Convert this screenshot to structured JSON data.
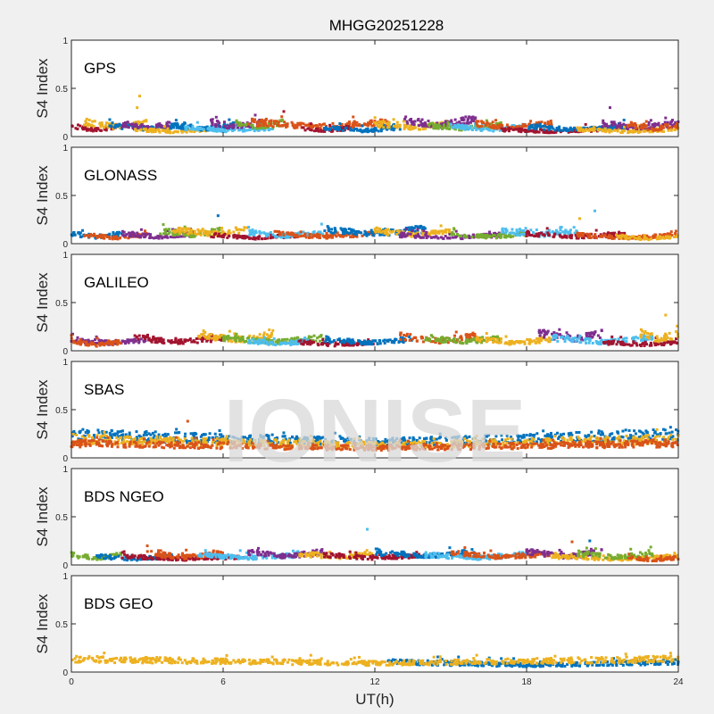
{
  "chart_data": {
    "type": "scatter",
    "title": "MHGG20251228",
    "xlabel": "UT(h)",
    "ylabel": "S4 Index",
    "xlim": [
      0,
      24
    ],
    "ylim": [
      0,
      1
    ],
    "xticks": [
      "0",
      "6",
      "12",
      "18",
      "24"
    ],
    "yticks": [
      "0",
      "0.5",
      "1"
    ],
    "watermark": "IONISE",
    "colors": [
      "#0072BD",
      "#D95319",
      "#EDB120",
      "#7E2F8E",
      "#77AC30",
      "#4DBEEE",
      "#A2142F"
    ],
    "panels": [
      {
        "label": "GPS",
        "tracks": [
          {
            "c": 6,
            "x": [
              0,
              2
            ],
            "y": 0.07
          },
          {
            "c": 2,
            "x": [
              0.5,
              3
            ],
            "y": 0.1
          },
          {
            "c": 0,
            "x": [
              1.5,
              4.5
            ],
            "y": 0.08
          },
          {
            "c": 3,
            "x": [
              2,
              4
            ],
            "y": 0.09
          },
          {
            "c": 2,
            "x": [
              2.5,
              5.5
            ],
            "y": 0.05
          },
          {
            "c": 0,
            "x": [
              4,
              6.5
            ],
            "y": 0.08
          },
          {
            "c": 5,
            "x": [
              4.5,
              8
            ],
            "y": 0.06
          },
          {
            "c": 3,
            "x": [
              5.5,
              7.5
            ],
            "y": 0.1
          },
          {
            "c": 4,
            "x": [
              6.5,
              8.5
            ],
            "y": 0.1
          },
          {
            "c": 1,
            "x": [
              7,
              12.5
            ],
            "y": 0.1
          },
          {
            "c": 6,
            "x": [
              9,
              11
            ],
            "y": 0.06
          },
          {
            "c": 0,
            "x": [
              10,
              13
            ],
            "y": 0.06
          },
          {
            "c": 2,
            "x": [
              12,
              15
            ],
            "y": 0.09
          },
          {
            "c": 3,
            "x": [
              13,
              16
            ],
            "y": 0.12
          },
          {
            "c": 4,
            "x": [
              14,
              17
            ],
            "y": 0.08
          },
          {
            "c": 5,
            "x": [
              15,
              18
            ],
            "y": 0.07
          },
          {
            "c": 1,
            "x": [
              16,
              19
            ],
            "y": 0.09
          },
          {
            "c": 6,
            "x": [
              17,
              21
            ],
            "y": 0.05
          },
          {
            "c": 0,
            "x": [
              18,
              22
            ],
            "y": 0.07
          },
          {
            "c": 2,
            "x": [
              20,
              24
            ],
            "y": 0.05
          },
          {
            "c": 3,
            "x": [
              21,
              24
            ],
            "y": 0.09
          },
          {
            "c": 1,
            "x": [
              22,
              24
            ],
            "y": 0.08
          }
        ],
        "spikes": [
          [
            2.7,
            0.42,
            2
          ],
          [
            2.6,
            0.3,
            2
          ],
          [
            8.4,
            0.26,
            6
          ],
          [
            21.3,
            0.3,
            3
          ]
        ]
      },
      {
        "label": "GLONASS",
        "tracks": [
          {
            "c": 0,
            "x": [
              0,
              2
            ],
            "y": 0.07
          },
          {
            "c": 1,
            "x": [
              0.5,
              3
            ],
            "y": 0.06
          },
          {
            "c": 3,
            "x": [
              2,
              5
            ],
            "y": 0.07
          },
          {
            "c": 4,
            "x": [
              3.5,
              6
            ],
            "y": 0.09
          },
          {
            "c": 2,
            "x": [
              4,
              7
            ],
            "y": 0.1
          },
          {
            "c": 6,
            "x": [
              5.5,
              9
            ],
            "y": 0.06
          },
          {
            "c": 5,
            "x": [
              7,
              10
            ],
            "y": 0.08
          },
          {
            "c": 1,
            "x": [
              8,
              12
            ],
            "y": 0.07
          },
          {
            "c": 0,
            "x": [
              10,
              14
            ],
            "y": 0.1
          },
          {
            "c": 2,
            "x": [
              12,
              15
            ],
            "y": 0.09
          },
          {
            "c": 3,
            "x": [
              13,
              17
            ],
            "y": 0.06
          },
          {
            "c": 4,
            "x": [
              15,
              18
            ],
            "y": 0.07
          },
          {
            "c": 5,
            "x": [
              17,
              20
            ],
            "y": 0.09
          },
          {
            "c": 6,
            "x": [
              18,
              22
            ],
            "y": 0.07
          },
          {
            "c": 1,
            "x": [
              20,
              24
            ],
            "y": 0.06
          },
          {
            "c": 2,
            "x": [
              21.5,
              24
            ],
            "y": 0.05
          }
        ],
        "spikes": [
          [
            5.8,
            0.29,
            0
          ],
          [
            20.7,
            0.34,
            5
          ],
          [
            20.1,
            0.26,
            2
          ]
        ]
      },
      {
        "label": "GALILEO",
        "tracks": [
          {
            "c": 3,
            "x": [
              0,
              3
            ],
            "y": 0.08
          },
          {
            "c": 1,
            "x": [
              0,
              2
            ],
            "y": 0.06
          },
          {
            "c": 6,
            "x": [
              2.5,
              6
            ],
            "y": 0.09
          },
          {
            "c": 2,
            "x": [
              5,
              8
            ],
            "y": 0.11
          },
          {
            "c": 4,
            "x": [
              6,
              10
            ],
            "y": 0.09
          },
          {
            "c": 5,
            "x": [
              7,
              9.5
            ],
            "y": 0.07
          },
          {
            "c": 6,
            "x": [
              9,
              12
            ],
            "y": 0.06
          },
          {
            "c": 0,
            "x": [
              10,
              13.5
            ],
            "y": 0.08
          },
          {
            "c": 1,
            "x": [
              13,
              16
            ],
            "y": 0.1
          },
          {
            "c": 4,
            "x": [
              14,
              17
            ],
            "y": 0.09
          },
          {
            "c": 2,
            "x": [
              16,
              19
            ],
            "y": 0.08
          },
          {
            "c": 3,
            "x": [
              18.5,
              21
            ],
            "y": 0.12
          },
          {
            "c": 5,
            "x": [
              19,
              23
            ],
            "y": 0.09
          },
          {
            "c": 6,
            "x": [
              21,
              24
            ],
            "y": 0.06
          },
          {
            "c": 2,
            "x": [
              22.5,
              24
            ],
            "y": 0.12
          }
        ],
        "spikes": [
          [
            23.5,
            0.37,
            2
          ],
          [
            19.3,
            0.22,
            3
          ]
        ]
      },
      {
        "label": "SBAS",
        "tracks": [
          {
            "c": 0,
            "x": [
              0,
              24
            ],
            "y": 0.16
          },
          {
            "c": 2,
            "x": [
              0,
              24
            ],
            "y": 0.13
          },
          {
            "c": 1,
            "x": [
              0,
              24
            ],
            "y": 0.1
          }
        ],
        "spikes": [
          [
            4.6,
            0.38,
            1
          ],
          [
            1.6,
            0.28,
            0
          ]
        ]
      },
      {
        "label": "BDS NGEO",
        "tracks": [
          {
            "c": 4,
            "x": [
              0,
              2
            ],
            "y": 0.07
          },
          {
            "c": 0,
            "x": [
              1,
              4
            ],
            "y": 0.06
          },
          {
            "c": 6,
            "x": [
              2,
              7
            ],
            "y": 0.06
          },
          {
            "c": 1,
            "x": [
              3,
              6
            ],
            "y": 0.08
          },
          {
            "c": 5,
            "x": [
              5,
              9
            ],
            "y": 0.07
          },
          {
            "c": 3,
            "x": [
              7,
              10
            ],
            "y": 0.09
          },
          {
            "c": 2,
            "x": [
              9,
              12
            ],
            "y": 0.08
          },
          {
            "c": 6,
            "x": [
              10,
              14
            ],
            "y": 0.07
          },
          {
            "c": 0,
            "x": [
              12,
              16
            ],
            "y": 0.09
          },
          {
            "c": 5,
            "x": [
              14,
              18
            ],
            "y": 0.07
          },
          {
            "c": 1,
            "x": [
              15,
              19
            ],
            "y": 0.08
          },
          {
            "c": 3,
            "x": [
              18,
              21
            ],
            "y": 0.09
          },
          {
            "c": 2,
            "x": [
              19,
              24
            ],
            "y": 0.06
          },
          {
            "c": 4,
            "x": [
              20,
              23
            ],
            "y": 0.08
          },
          {
            "c": 1,
            "x": [
              22,
              24
            ],
            "y": 0.05
          }
        ],
        "spikes": [
          [
            11.7,
            0.37,
            5
          ],
          [
            20.5,
            0.25,
            0
          ],
          [
            19.8,
            0.24,
            1
          ]
        ]
      },
      {
        "label": "BDS GEO",
        "tracks": [
          {
            "c": 0,
            "x": [
              12.5,
              24
            ],
            "y": 0.07
          },
          {
            "c": 2,
            "x": [
              0,
              24
            ],
            "y": 0.09
          }
        ],
        "spikes": [
          [
            17.0,
            0.14,
            0
          ]
        ]
      }
    ]
  }
}
